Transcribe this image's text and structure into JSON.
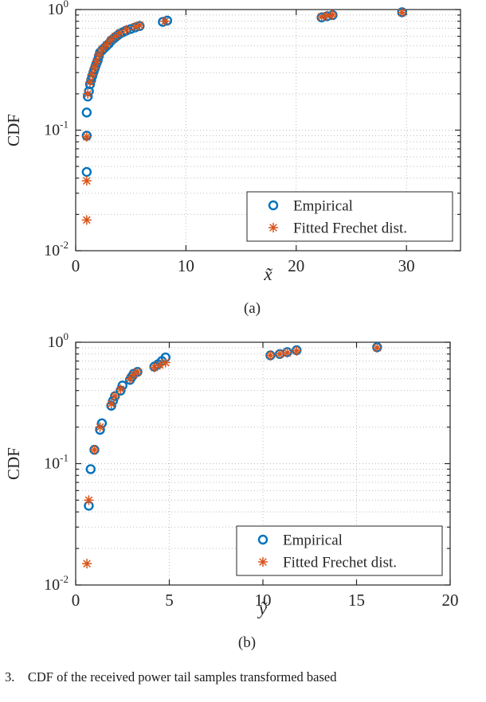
{
  "caption": "3.    CDF of the received power tail samples transformed based",
  "chart_data": [
    {
      "type": "scatter",
      "sublabel": "(a)",
      "title": "",
      "xlabel": "x̃",
      "ylabel": "CDF",
      "xlim": [
        0,
        34.9
      ],
      "x_ticks": [
        0,
        10,
        20,
        30
      ],
      "ylog": true,
      "ylim": [
        0.01,
        1
      ],
      "y_tick_exponents": [
        -2,
        -1,
        0
      ],
      "grid": true,
      "legend_position": "southeast",
      "series": [
        {
          "name": "Empirical",
          "marker": "o",
          "color": "#0072BD",
          "points": [
            [
              1.0,
              0.045
            ],
            [
              1.0,
              0.09
            ],
            [
              1.0,
              0.14
            ],
            [
              1.1,
              0.19
            ],
            [
              1.2,
              0.21
            ],
            [
              1.3,
              0.24
            ],
            [
              1.4,
              0.26
            ],
            [
              1.5,
              0.28
            ],
            [
              1.6,
              0.3
            ],
            [
              1.7,
              0.32
            ],
            [
              1.8,
              0.34
            ],
            [
              1.9,
              0.36
            ],
            [
              2.0,
              0.38
            ],
            [
              2.1,
              0.41
            ],
            [
              2.2,
              0.44
            ],
            [
              2.4,
              0.46
            ],
            [
              2.6,
              0.48
            ],
            [
              2.8,
              0.5
            ],
            [
              3.0,
              0.52
            ],
            [
              3.2,
              0.55
            ],
            [
              3.4,
              0.57
            ],
            [
              3.6,
              0.59
            ],
            [
              3.8,
              0.61
            ],
            [
              4.0,
              0.63
            ],
            [
              4.3,
              0.65
            ],
            [
              4.6,
              0.67
            ],
            [
              5.0,
              0.69
            ],
            [
              5.4,
              0.71
            ],
            [
              5.8,
              0.73
            ],
            [
              7.9,
              0.79
            ],
            [
              8.3,
              0.81
            ],
            [
              22.3,
              0.86
            ],
            [
              22.8,
              0.88
            ],
            [
              23.3,
              0.9
            ],
            [
              29.6,
              0.95
            ]
          ]
        },
        {
          "name": "Fitted Frechet dist.",
          "marker": "*",
          "color": "#D95319",
          "points": [
            [
              1.0,
              0.018
            ],
            [
              1.0,
              0.038
            ],
            [
              1.0,
              0.088
            ],
            [
              1.1,
              0.2
            ],
            [
              1.3,
              0.25
            ],
            [
              1.5,
              0.29
            ],
            [
              1.7,
              0.33
            ],
            [
              1.9,
              0.37
            ],
            [
              2.1,
              0.42
            ],
            [
              2.4,
              0.47
            ],
            [
              2.8,
              0.51
            ],
            [
              3.2,
              0.56
            ],
            [
              3.6,
              0.6
            ],
            [
              4.0,
              0.64
            ],
            [
              4.6,
              0.68
            ],
            [
              5.4,
              0.72
            ],
            [
              5.8,
              0.74
            ],
            [
              8.1,
              0.8
            ],
            [
              22.3,
              0.87
            ],
            [
              22.8,
              0.89
            ],
            [
              23.3,
              0.905
            ],
            [
              29.6,
              0.945
            ]
          ]
        }
      ]
    },
    {
      "type": "scatter",
      "sublabel": "(b)",
      "title": "",
      "xlabel": "ỹ",
      "ylabel": "CDF",
      "xlim": [
        0,
        20
      ],
      "x_ticks": [
        0,
        5,
        10,
        15,
        20
      ],
      "ylog": true,
      "ylim": [
        0.01,
        1
      ],
      "y_tick_exponents": [
        -2,
        -1,
        0
      ],
      "grid": true,
      "legend_position": "southeast",
      "series": [
        {
          "name": "Empirical",
          "marker": "o",
          "color": "#0072BD",
          "points": [
            [
              0.7,
              0.045
            ],
            [
              0.8,
              0.09
            ],
            [
              1.0,
              0.13
            ],
            [
              1.3,
              0.19
            ],
            [
              1.4,
              0.215
            ],
            [
              1.9,
              0.3
            ],
            [
              2.0,
              0.33
            ],
            [
              2.1,
              0.36
            ],
            [
              2.4,
              0.4
            ],
            [
              2.5,
              0.44
            ],
            [
              2.9,
              0.49
            ],
            [
              3.0,
              0.52
            ],
            [
              3.1,
              0.55
            ],
            [
              3.3,
              0.57
            ],
            [
              4.2,
              0.63
            ],
            [
              4.4,
              0.66
            ],
            [
              4.6,
              0.7
            ],
            [
              4.8,
              0.75
            ],
            [
              10.4,
              0.78
            ],
            [
              10.9,
              0.8
            ],
            [
              11.3,
              0.83
            ],
            [
              11.8,
              0.86
            ],
            [
              16.1,
              0.91
            ]
          ]
        },
        {
          "name": "Fitted Frechet dist.",
          "marker": "*",
          "color": "#D95319",
          "points": [
            [
              0.6,
              0.015
            ],
            [
              0.7,
              0.05
            ],
            [
              1.0,
              0.13
            ],
            [
              1.3,
              0.2
            ],
            [
              1.9,
              0.31
            ],
            [
              2.1,
              0.36
            ],
            [
              2.4,
              0.41
            ],
            [
              2.9,
              0.5
            ],
            [
              3.1,
              0.54
            ],
            [
              3.3,
              0.57
            ],
            [
              4.2,
              0.62
            ],
            [
              4.5,
              0.65
            ],
            [
              4.8,
              0.68
            ],
            [
              10.4,
              0.78
            ],
            [
              10.9,
              0.8
            ],
            [
              11.3,
              0.82
            ],
            [
              11.8,
              0.85
            ],
            [
              16.1,
              0.9
            ]
          ]
        }
      ]
    }
  ]
}
